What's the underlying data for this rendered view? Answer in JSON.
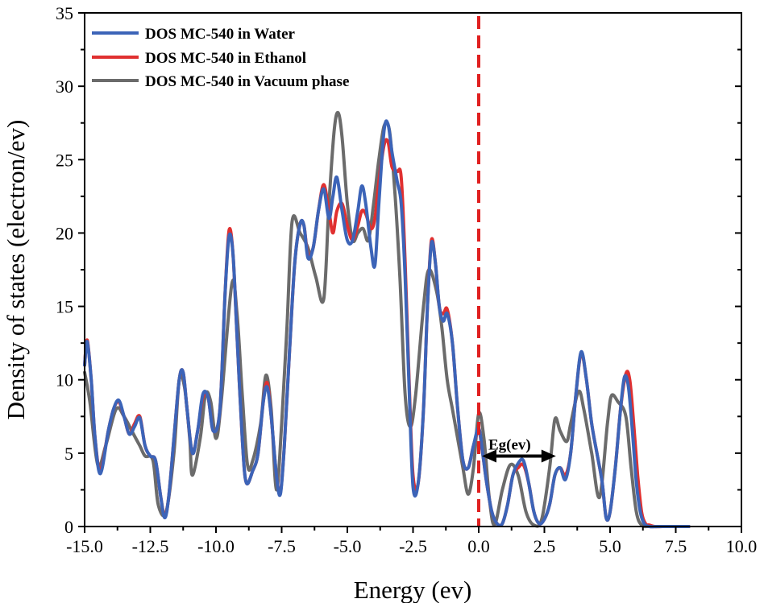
{
  "chart_data": {
    "type": "line",
    "title": "",
    "xlabel": "Energy (ev)",
    "ylabel": "Density of states (electron/ev)",
    "xlim": [
      -15.0,
      10.0
    ],
    "ylim": [
      0,
      35
    ],
    "x_ticks": [
      -15.0,
      -12.5,
      -10.0,
      -7.5,
      -5.0,
      -2.5,
      0.0,
      2.5,
      5.0,
      7.5,
      10.0
    ],
    "x_tick_labels": [
      "-15.0",
      "-12.5",
      "-10.0",
      "-7.5",
      "-5.0",
      "-2.5",
      "0.0",
      "2.5",
      "5.0",
      "7.5",
      "10.0"
    ],
    "y_ticks": [
      0,
      5,
      10,
      15,
      20,
      25,
      30,
      35
    ],
    "y_tick_labels": [
      "0",
      "5",
      "10",
      "15",
      "20",
      "25",
      "30",
      "35"
    ],
    "grid": false,
    "legend_position": "top-left",
    "fermi_level": 0.0,
    "fermi_color": "#e02020",
    "annotation": {
      "label": "Eg(ev)",
      "x_start": 0.0,
      "x_end": 3.0,
      "y": 4.8,
      "color": "#000000"
    },
    "series": [
      {
        "name": "DOS MC-540 in Vacuum phase",
        "color": "#6b6b6b",
        "x": [
          -15.0,
          -14.8,
          -14.5,
          -14.2,
          -13.8,
          -13.5,
          -13.2,
          -12.9,
          -12.7,
          -12.4,
          -12.2,
          -11.9,
          -11.6,
          -11.4,
          -11.2,
          -11.0,
          -10.9,
          -10.6,
          -10.4,
          -10.2,
          -10.0,
          -9.8,
          -9.4,
          -9.2,
          -9.0,
          -8.8,
          -8.6,
          -8.3,
          -8.1,
          -7.9,
          -7.7,
          -7.5,
          -7.3,
          -7.1,
          -6.8,
          -6.5,
          -6.2,
          -5.9,
          -5.7,
          -5.5,
          -5.35,
          -5.2,
          -5.0,
          -4.8,
          -4.6,
          -4.4,
          -4.2,
          -4.0,
          -3.8,
          -3.6,
          -3.4,
          -3.2,
          -3.0,
          -2.8,
          -2.6,
          -2.4,
          -2.1,
          -1.9,
          -1.6,
          -1.4,
          -1.2,
          -1.0,
          -0.8,
          -0.6,
          -0.4,
          -0.2,
          0.0,
          0.2,
          0.4,
          0.6,
          0.9,
          1.2,
          1.5,
          1.8,
          2.1,
          2.4,
          2.7,
          2.9,
          3.1,
          3.35,
          3.5,
          3.8,
          4.0,
          4.3,
          4.6,
          4.9,
          5.05,
          5.3,
          5.6,
          5.8,
          6.0,
          6.2,
          6.5,
          7.0,
          8.0
        ],
        "y": [
          10.5,
          8.5,
          4.2,
          5.5,
          8.0,
          7.5,
          6.5,
          5.5,
          4.8,
          4.5,
          1.5,
          1.0,
          5.0,
          10.0,
          9.5,
          6.0,
          3.5,
          6.0,
          9.0,
          8.5,
          6.0,
          8.5,
          16.5,
          14.5,
          9.0,
          4.2,
          4.5,
          7.0,
          10.3,
          8.0,
          2.5,
          7.0,
          13.5,
          20.8,
          20.0,
          19.0,
          17.0,
          15.5,
          22.0,
          27.0,
          28.2,
          26.5,
          22.0,
          19.5,
          20.0,
          20.3,
          19.5,
          22.0,
          25.0,
          27.3,
          27.0,
          23.0,
          17.0,
          9.0,
          6.8,
          9.0,
          15.0,
          17.5,
          16.0,
          13.5,
          10.0,
          8.0,
          6.0,
          4.0,
          2.2,
          4.0,
          7.7,
          6.0,
          2.0,
          0.1,
          2.5,
          4.2,
          3.5,
          1.0,
          0.1,
          0.5,
          4.0,
          7.3,
          6.5,
          5.8,
          7.0,
          9.2,
          8.0,
          5.0,
          2.0,
          7.0,
          8.9,
          8.5,
          7.5,
          4.0,
          1.0,
          0.1,
          0.0,
          0.0,
          0.0
        ]
      },
      {
        "name": "DOS MC-540 in Ethanol",
        "color": "#e03030",
        "x": [
          -15.0,
          -14.9,
          -14.75,
          -14.6,
          -14.4,
          -14.1,
          -13.9,
          -13.7,
          -13.5,
          -13.3,
          -13.1,
          -12.9,
          -12.7,
          -12.5,
          -12.3,
          -12.1,
          -11.95,
          -11.8,
          -11.6,
          -11.4,
          -11.25,
          -11.1,
          -10.9,
          -10.7,
          -10.5,
          -10.3,
          -10.1,
          -9.85,
          -9.65,
          -9.5,
          -9.35,
          -9.2,
          -9.0,
          -8.85,
          -8.6,
          -8.4,
          -8.2,
          -8.05,
          -7.9,
          -7.7,
          -7.55,
          -7.4,
          -7.2,
          -7.0,
          -6.8,
          -6.65,
          -6.5,
          -6.3,
          -6.1,
          -5.9,
          -5.7,
          -5.55,
          -5.4,
          -5.2,
          -5.0,
          -4.8,
          -4.6,
          -4.45,
          -4.3,
          -4.1,
          -3.95,
          -3.8,
          -3.6,
          -3.45,
          -3.3,
          -3.1,
          -2.95,
          -2.8,
          -2.65,
          -2.5,
          -2.3,
          -2.1,
          -1.95,
          -1.8,
          -1.65,
          -1.5,
          -1.35,
          -1.2,
          -1.0,
          -0.8,
          -0.6,
          -0.4,
          -0.2,
          0.0,
          0.15,
          0.3,
          0.5,
          0.7,
          0.9,
          1.1,
          1.3,
          1.5,
          1.7,
          1.9,
          2.1,
          2.3,
          2.5,
          2.7,
          2.9,
          3.1,
          3.3,
          3.5,
          3.7,
          3.9,
          4.1,
          4.3,
          4.5,
          4.7,
          4.85,
          5.0,
          5.2,
          5.4,
          5.6,
          5.75,
          5.9,
          6.05,
          6.2,
          6.35,
          6.5,
          6.7,
          7.0,
          7.5,
          8.0
        ],
        "y": [
          11.0,
          12.7,
          10.0,
          6.0,
          3.8,
          6.5,
          8.0,
          8.5,
          7.5,
          6.3,
          7.0,
          7.5,
          5.5,
          4.8,
          4.5,
          2.0,
          0.7,
          2.0,
          6.0,
          10.0,
          10.5,
          8.0,
          5.0,
          6.5,
          8.8,
          8.8,
          6.5,
          8.0,
          16.0,
          20.2,
          18.5,
          13.0,
          6.0,
          3.0,
          3.8,
          5.0,
          8.5,
          9.8,
          7.5,
          3.5,
          2.3,
          5.5,
          12.0,
          18.0,
          20.6,
          20.5,
          18.5,
          19.0,
          21.5,
          23.3,
          21.5,
          20.0,
          21.5,
          22.0,
          20.5,
          19.5,
          20.5,
          21.5,
          21.3,
          20.3,
          21.0,
          23.5,
          26.0,
          26.2,
          24.5,
          24.2,
          23.8,
          18.0,
          10.0,
          3.5,
          3.0,
          8.0,
          15.0,
          19.5,
          18.0,
          15.0,
          14.5,
          14.8,
          12.5,
          8.0,
          4.5,
          4.0,
          5.5,
          6.5,
          5.0,
          3.0,
          1.0,
          0.2,
          0.2,
          1.5,
          3.5,
          4.0,
          4.2,
          3.0,
          1.0,
          0.2,
          0.5,
          1.5,
          3.5,
          4.0,
          3.5,
          5.0,
          9.0,
          11.8,
          10.0,
          7.0,
          5.0,
          3.0,
          0.6,
          1.0,
          4.0,
          8.0,
          10.4,
          10.0,
          7.0,
          3.5,
          1.0,
          0.2,
          0.1,
          0.0,
          0.0,
          0.0,
          0.0
        ]
      },
      {
        "name": "DOS MC-540 in Water",
        "color": "#3c64b8",
        "x": [
          -15.0,
          -14.9,
          -14.75,
          -14.6,
          -14.4,
          -14.1,
          -13.9,
          -13.7,
          -13.5,
          -13.3,
          -13.1,
          -12.9,
          -12.7,
          -12.5,
          -12.3,
          -12.1,
          -11.95,
          -11.8,
          -11.6,
          -11.4,
          -11.25,
          -11.1,
          -10.9,
          -10.7,
          -10.5,
          -10.3,
          -10.1,
          -9.85,
          -9.65,
          -9.5,
          -9.35,
          -9.2,
          -9.0,
          -8.85,
          -8.6,
          -8.4,
          -8.2,
          -8.05,
          -7.9,
          -7.7,
          -7.55,
          -7.4,
          -7.2,
          -7.0,
          -6.8,
          -6.65,
          -6.5,
          -6.3,
          -6.1,
          -5.9,
          -5.7,
          -5.55,
          -5.4,
          -5.2,
          -5.0,
          -4.8,
          -4.6,
          -4.45,
          -4.3,
          -4.1,
          -3.95,
          -3.8,
          -3.6,
          -3.45,
          -3.3,
          -3.1,
          -2.95,
          -2.8,
          -2.65,
          -2.5,
          -2.3,
          -2.1,
          -1.95,
          -1.8,
          -1.65,
          -1.5,
          -1.35,
          -1.2,
          -1.0,
          -0.8,
          -0.6,
          -0.4,
          -0.2,
          0.0,
          0.15,
          0.3,
          0.5,
          0.7,
          0.9,
          1.1,
          1.3,
          1.5,
          1.7,
          1.9,
          2.1,
          2.3,
          2.5,
          2.7,
          2.9,
          3.1,
          3.3,
          3.5,
          3.7,
          3.9,
          4.1,
          4.3,
          4.5,
          4.7,
          4.85,
          5.0,
          5.2,
          5.4,
          5.55,
          5.7,
          5.85,
          6.0,
          6.15,
          6.3,
          6.5,
          6.8,
          7.2,
          8.0
        ],
        "y": [
          11.0,
          12.6,
          10.0,
          6.0,
          3.6,
          6.5,
          8.0,
          8.6,
          7.5,
          6.3,
          6.8,
          7.4,
          5.5,
          4.8,
          4.5,
          2.0,
          0.6,
          2.0,
          6.0,
          10.0,
          10.5,
          8.0,
          5.0,
          6.5,
          9.0,
          8.8,
          6.5,
          8.0,
          16.0,
          19.8,
          18.5,
          13.0,
          6.0,
          3.0,
          3.8,
          5.0,
          8.5,
          9.5,
          7.5,
          3.5,
          2.2,
          5.5,
          12.0,
          18.0,
          20.6,
          20.5,
          18.3,
          19.0,
          21.5,
          23.0,
          21.0,
          22.5,
          23.8,
          21.5,
          19.5,
          19.5,
          21.5,
          23.2,
          22.0,
          19.0,
          17.8,
          22.0,
          27.0,
          27.4,
          25.5,
          23.5,
          22.0,
          17.0,
          9.5,
          2.7,
          3.0,
          8.0,
          15.0,
          19.3,
          18.0,
          15.0,
          14.0,
          14.5,
          12.5,
          8.0,
          4.5,
          4.0,
          5.5,
          6.7,
          5.0,
          3.0,
          1.0,
          0.2,
          0.2,
          1.5,
          3.5,
          4.3,
          4.5,
          3.0,
          1.0,
          0.2,
          0.5,
          1.5,
          3.5,
          4.0,
          3.2,
          5.0,
          9.0,
          11.9,
          10.0,
          7.0,
          5.0,
          3.0,
          0.6,
          1.0,
          4.0,
          8.0,
          10.2,
          9.5,
          6.5,
          3.0,
          1.0,
          0.2,
          0.0,
          0.0,
          0.0,
          0.0
        ]
      }
    ]
  },
  "legend": {
    "items": [
      {
        "label": "DOS MC-540 in Water",
        "color": "#3c64b8"
      },
      {
        "label": "DOS MC-540 in Ethanol",
        "color": "#e03030"
      },
      {
        "label": "DOS MC-540 in Vacuum phase",
        "color": "#6b6b6b"
      }
    ]
  }
}
